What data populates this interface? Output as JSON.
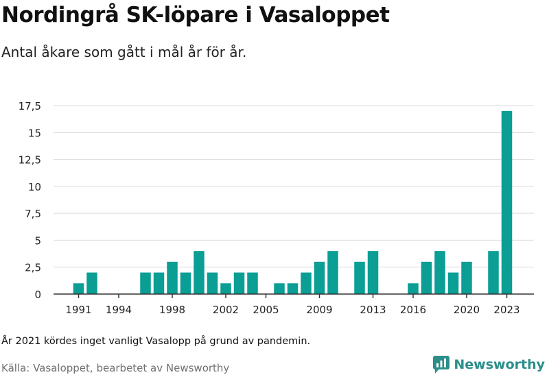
{
  "header": {
    "title": "Nordingrå SK-löpare i Vasaloppet",
    "subtitle": "Antal åkare som gått i mål år för år."
  },
  "footer": {
    "note": "År 2021 kördes inget vanligt Vasalopp på grund av pandemin.",
    "source": "Källa: Vasaloppet, bearbetet av Newsworthy",
    "brand": "Newsworthy"
  },
  "colors": {
    "bar": "#0a9e95",
    "grid": "#d9d9d9",
    "axis": "#333333",
    "brand": "#2a8f8a"
  },
  "icons": {
    "brand_logo": "newsworthy-chat-chart-icon"
  },
  "chart_data": {
    "type": "bar",
    "x": [
      1991,
      1992,
      1993,
      1994,
      1995,
      1996,
      1997,
      1998,
      1999,
      2000,
      2001,
      2002,
      2003,
      2004,
      2005,
      2006,
      2007,
      2008,
      2009,
      2010,
      2011,
      2012,
      2013,
      2014,
      2015,
      2016,
      2017,
      2018,
      2019,
      2020,
      2021,
      2022,
      2023
    ],
    "values": [
      1,
      2,
      0,
      0,
      0,
      2,
      2,
      3,
      2,
      4,
      2,
      1,
      2,
      2,
      0,
      1,
      1,
      2,
      3,
      4,
      0,
      3,
      4,
      0,
      0,
      1,
      3,
      4,
      2,
      3,
      0,
      4,
      17
    ],
    "x_tick_labels": [
      "1991",
      "1994",
      "1998",
      "2002",
      "2005",
      "2009",
      "2013",
      "2016",
      "2020",
      "2023"
    ],
    "y_ticks": [
      0,
      2.5,
      5,
      7.5,
      10,
      12.5,
      15,
      17.5
    ],
    "y_tick_labels": [
      "0",
      "2,5",
      "5",
      "7,5",
      "10",
      "12,5",
      "15",
      "17,5"
    ],
    "ylim": [
      0,
      17.5
    ],
    "xlabel": "",
    "ylabel": "",
    "grid": "horizontal",
    "legend": "none"
  }
}
